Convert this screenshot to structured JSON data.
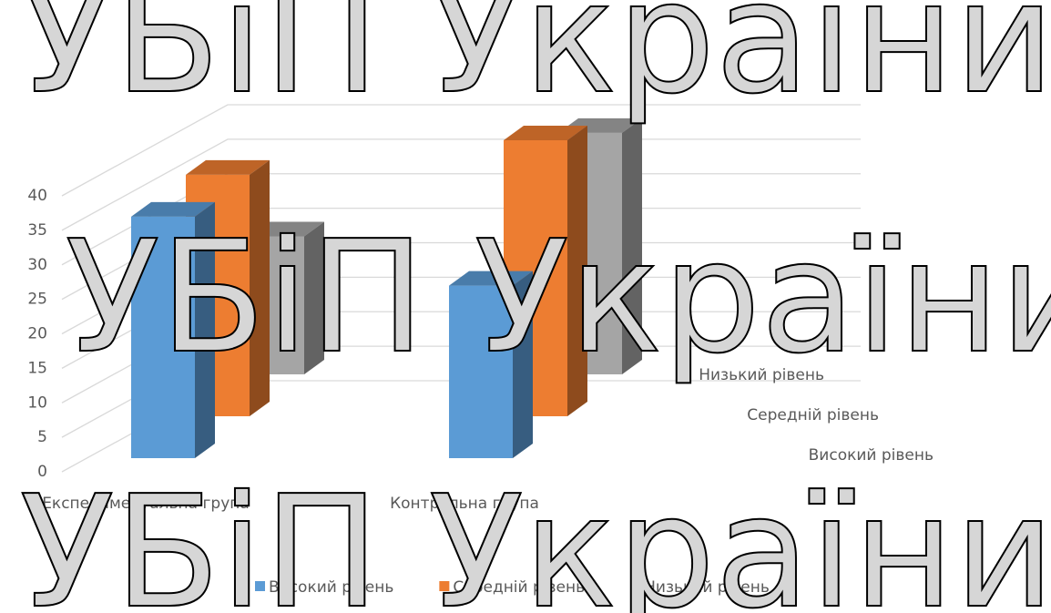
{
  "chart_data": {
    "type": "bar3d",
    "categories": [
      "Експериментальна група",
      "Контрольна група"
    ],
    "series": [
      {
        "name": "Високий рівень",
        "color": "#5b9bd5",
        "values": [
          35,
          25
        ]
      },
      {
        "name": "Середній рівень",
        "color": "#ed7d31",
        "values": [
          35,
          40
        ]
      },
      {
        "name": "Низький рівень",
        "color": "#a5a5a5",
        "values": [
          20,
          35
        ]
      }
    ],
    "ylim": [
      0,
      40
    ],
    "yticks": [
      0,
      5,
      10,
      15,
      20,
      25,
      30,
      35,
      40
    ],
    "grid": true,
    "legend": "bottom",
    "watermark": "УБіП України"
  }
}
